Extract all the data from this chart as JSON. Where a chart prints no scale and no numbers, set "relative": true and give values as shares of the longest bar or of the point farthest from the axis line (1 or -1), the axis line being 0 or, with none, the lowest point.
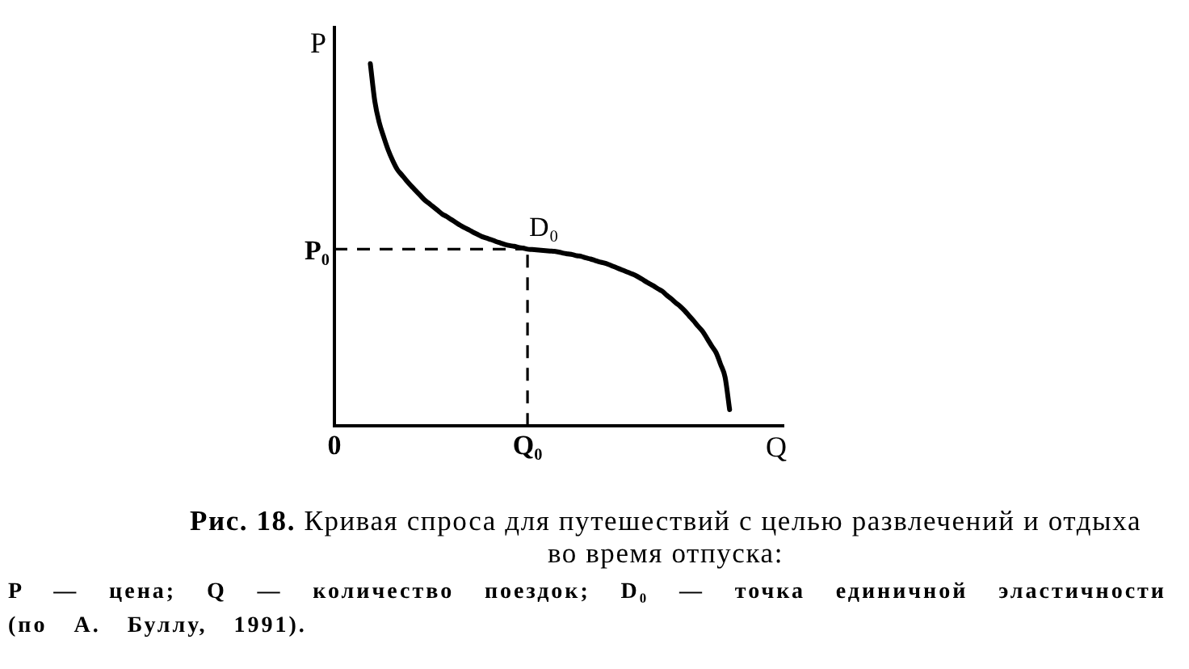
{
  "chart_data": {
    "type": "line",
    "title": "Рис. 18. Кривая спроса для путешествий с целью развлечений и отдыха во время отпуска:",
    "xlabel": "Q",
    "ylabel": "P",
    "relative": true,
    "categories": [
      "0",
      null,
      null,
      null,
      null,
      null,
      null,
      null,
      null,
      null,
      null,
      null,
      null,
      null,
      null,
      null,
      null,
      null,
      null,
      null,
      null,
      null,
      null,
      null,
      null,
      null,
      null,
      null,
      null,
      null,
      null,
      null,
      null,
      null,
      null,
      null,
      null,
      null,
      null,
      null,
      null,
      null,
      null,
      "Q₀",
      null,
      null,
      null,
      null,
      null,
      null,
      null,
      null,
      null,
      null,
      null,
      null,
      null,
      null,
      null,
      null,
      null,
      null,
      null,
      null,
      null,
      null,
      null,
      null,
      null,
      null,
      null,
      null,
      null,
      null,
      null,
      null,
      null,
      null,
      null,
      null,
      null,
      null,
      null,
      null,
      null,
      null,
      null,
      null,
      null,
      null,
      null,
      null,
      null,
      null,
      null,
      null,
      null,
      null,
      null,
      null,
      null
    ],
    "series": [
      {
        "color": "#000000",
        "values": [
          null,
          null,
          null,
          null,
          null,
          null,
          null,
          null,
          1.0,
          0.896,
          0.837,
          0.797,
          0.761,
          0.732,
          0.708,
          0.693,
          0.678,
          0.664,
          0.651,
          0.638,
          0.625,
          0.615,
          0.605,
          0.595,
          0.585,
          0.578,
          0.57,
          0.562,
          0.554,
          0.547,
          0.541,
          0.534,
          0.528,
          0.522,
          0.518,
          0.514,
          0.509,
          0.505,
          0.501,
          0.498,
          0.496,
          0.493,
          0.491,
          0.488,
          0.487,
          0.486,
          0.485,
          0.484,
          0.483,
          0.482,
          0.48,
          0.477,
          0.475,
          0.473,
          0.47,
          0.468,
          0.464,
          0.461,
          0.457,
          0.453,
          0.45,
          0.446,
          0.441,
          0.436,
          0.431,
          0.426,
          0.421,
          0.416,
          0.409,
          0.401,
          0.394,
          0.387,
          0.379,
          0.372,
          0.361,
          0.351,
          0.34,
          0.33,
          0.318,
          0.304,
          0.29,
          0.275,
          0.261,
          0.241,
          0.221,
          0.202,
          0.17,
          0.134,
          0.045,
          null,
          null,
          null,
          null,
          null,
          null,
          null,
          null,
          null,
          null,
          null,
          null
        ]
      }
    ],
    "ref_lines": [
      {
        "axis": "y",
        "value": 0.488,
        "label": "P₀",
        "line_style": "dashed"
      },
      {
        "axis": "x",
        "value": "Q₀",
        "line_style": "dashed"
      }
    ],
    "annotations": [
      {
        "text": "D₀",
        "x": "Q₀",
        "y": 0.488
      },
      "P — цена; Q — количество поездок; D₀ — точка единичной эластичности (по А. Буллу, 1991)."
    ],
    "marker": "none",
    "line_style": "solid"
  }
}
